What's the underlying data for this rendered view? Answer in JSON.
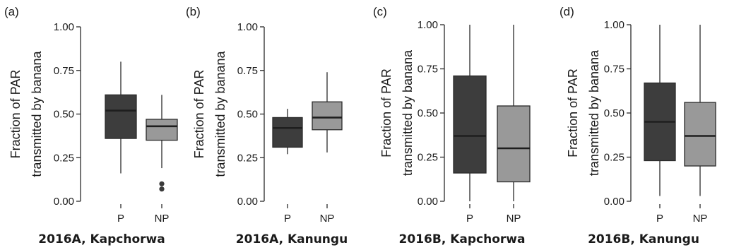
{
  "colors": {
    "P": "#3d3d3d",
    "NP": "#999999",
    "line": "#2b2b2b"
  },
  "chart_data": [
    {
      "type": "box",
      "panel_label": "(a)",
      "title": "2016A, Kapchorwa",
      "ylabel_lines": [
        "Fraction of PAR",
        "transmitted by banana"
      ],
      "ylim": [
        0,
        1
      ],
      "yticks": [
        "0.00",
        "0.25",
        "0.50",
        "0.75",
        "1.00"
      ],
      "categories": [
        "P",
        "NP"
      ],
      "boxes": [
        {
          "name": "P",
          "whisker_low": 0.16,
          "q1": 0.36,
          "median": 0.52,
          "q3": 0.61,
          "whisker_high": 0.8,
          "outliers": []
        },
        {
          "name": "NP",
          "whisker_low": 0.19,
          "q1": 0.35,
          "median": 0.43,
          "q3": 0.47,
          "whisker_high": 0.61,
          "outliers": [
            0.07,
            0.1
          ]
        }
      ]
    },
    {
      "type": "box",
      "panel_label": "(b)",
      "title": "2016A, Kanungu",
      "ylabel_lines": [
        "Fraction of PAR",
        "transmitted by banana"
      ],
      "ylim": [
        0,
        1
      ],
      "yticks": [
        "0.00",
        "0.25",
        "0.50",
        "0.75",
        "1.00"
      ],
      "categories": [
        "P",
        "NP"
      ],
      "boxes": [
        {
          "name": "P",
          "whisker_low": 0.27,
          "q1": 0.31,
          "median": 0.42,
          "q3": 0.48,
          "whisker_high": 0.53,
          "outliers": []
        },
        {
          "name": "NP",
          "whisker_low": 0.28,
          "q1": 0.41,
          "median": 0.48,
          "q3": 0.57,
          "whisker_high": 0.74,
          "outliers": []
        }
      ]
    },
    {
      "type": "box",
      "panel_label": "(c)",
      "title": "2016B, Kapchorwa",
      "ylabel_lines": [
        "Fraction of PAR",
        "transmitted by banana"
      ],
      "ylim": [
        0,
        1
      ],
      "yticks": [
        "0.00",
        "0.25",
        "0.50",
        "0.75",
        "1.00"
      ],
      "categories": [
        "P",
        "NP"
      ],
      "boxes": [
        {
          "name": "P",
          "whisker_low": 0.0,
          "q1": 0.16,
          "median": 0.37,
          "q3": 0.71,
          "whisker_high": 1.0,
          "outliers": []
        },
        {
          "name": "NP",
          "whisker_low": 0.0,
          "q1": 0.11,
          "median": 0.3,
          "q3": 0.54,
          "whisker_high": 1.0,
          "outliers": []
        }
      ]
    },
    {
      "type": "box",
      "panel_label": "(d)",
      "title": "2016B, Kanungu",
      "ylabel_lines": [
        "Fraction of PAR",
        "transmitted by banana"
      ],
      "ylim": [
        0,
        1
      ],
      "yticks": [
        "0.00",
        "0.25",
        "0.50",
        "0.75",
        "1.00"
      ],
      "categories": [
        "P",
        "NP"
      ],
      "boxes": [
        {
          "name": "P",
          "whisker_low": 0.03,
          "q1": 0.23,
          "median": 0.45,
          "q3": 0.67,
          "whisker_high": 1.0,
          "outliers": []
        },
        {
          "name": "NP",
          "whisker_low": 0.03,
          "q1": 0.2,
          "median": 0.37,
          "q3": 0.56,
          "whisker_high": 1.0,
          "outliers": []
        }
      ]
    }
  ]
}
